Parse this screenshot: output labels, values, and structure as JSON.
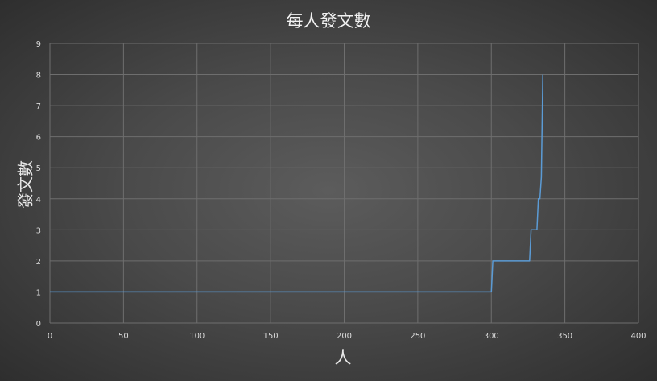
{
  "chart_data": {
    "type": "line",
    "title": "每人發文數",
    "xlabel": "人",
    "ylabel": "發文數",
    "xlim": [
      0,
      400
    ],
    "ylim": [
      0,
      9
    ],
    "xticks": [
      0,
      50,
      100,
      150,
      200,
      250,
      300,
      350,
      400
    ],
    "yticks": [
      0,
      1,
      2,
      3,
      4,
      5,
      6,
      7,
      8,
      9
    ],
    "grid": true,
    "line_color": "#5b9bd5",
    "series": [
      {
        "x": [
          0,
          300,
          301,
          326,
          327,
          331,
          332,
          333,
          334,
          335
        ],
        "values": [
          1,
          1,
          2,
          2,
          3,
          3,
          4,
          4,
          4.7,
          8
        ]
      }
    ]
  }
}
